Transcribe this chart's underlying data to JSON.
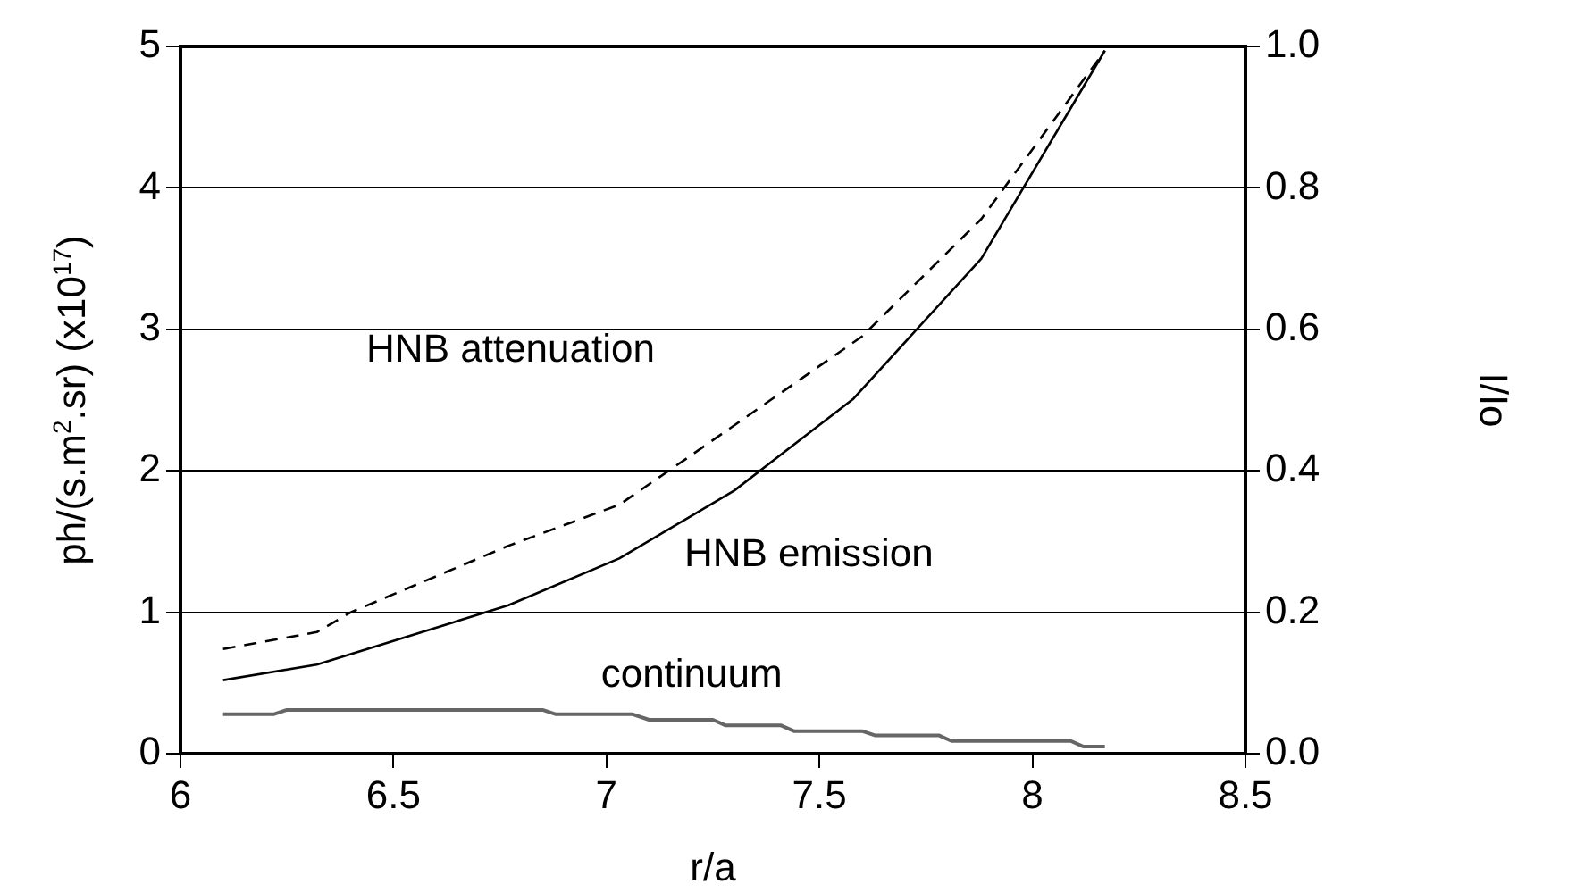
{
  "chart_data": {
    "type": "line",
    "xlabel": "r/a",
    "ylabel": "ph/(s.m$^{2}$.sr) (x10$^{17}$)",
    "y2label": "I/Io",
    "xlim": [
      6,
      8.5
    ],
    "xticks": [
      6,
      6.5,
      7,
      7.5,
      8,
      8.5
    ],
    "ylim": [
      0,
      5
    ],
    "yticks": [
      0,
      1,
      2,
      3,
      4,
      5
    ],
    "y2lim": [
      0,
      1
    ],
    "y2ticks": [
      {
        "value": 0,
        "label": "0.0"
      },
      {
        "value": 0.2,
        "label": "0.2"
      },
      {
        "value": 0.4,
        "label": "0.4"
      },
      {
        "value": 0.6,
        "label": "0.6"
      },
      {
        "value": 0.8,
        "label": "0.8"
      },
      {
        "value": 1,
        "label": "1.0"
      }
    ],
    "grid": "y",
    "legend": false,
    "marker": "none",
    "series": [
      {
        "color": "#000000",
        "line_style": "dashed",
        "x": [
          6.1,
          6.32,
          6.4,
          6.77,
          7.03,
          7.18,
          7.6,
          7.88,
          8.17
        ],
        "values": [
          0.74,
          0.86,
          1.0,
          1.47,
          1.76,
          2.07,
          2.95,
          3.78,
          4.97
        ]
      },
      {
        "color": "#000000",
        "line_style": "solid",
        "x": [
          6.1,
          6.32,
          6.77,
          7.03,
          7.3,
          7.58,
          7.88,
          8.17
        ],
        "values": [
          0.52,
          0.63,
          1.05,
          1.38,
          1.86,
          2.51,
          3.5,
          4.97
        ]
      },
      {
        "color": "#666666",
        "line_style": "solid",
        "x": [
          6.1,
          6.22,
          6.25,
          6.85,
          6.88,
          7.06,
          7.1,
          7.25,
          7.28,
          7.41,
          7.44,
          7.6,
          7.63,
          7.78,
          7.81,
          8.09,
          8.12,
          8.17
        ],
        "values": [
          0.28,
          0.28,
          0.31,
          0.31,
          0.28,
          0.28,
          0.24,
          0.24,
          0.2,
          0.2,
          0.16,
          0.16,
          0.13,
          0.13,
          0.09,
          0.09,
          0.05,
          0.05
        ]
      }
    ],
    "annotations": [
      "HNB attenuation",
      "HNB emission",
      "continuum"
    ]
  }
}
